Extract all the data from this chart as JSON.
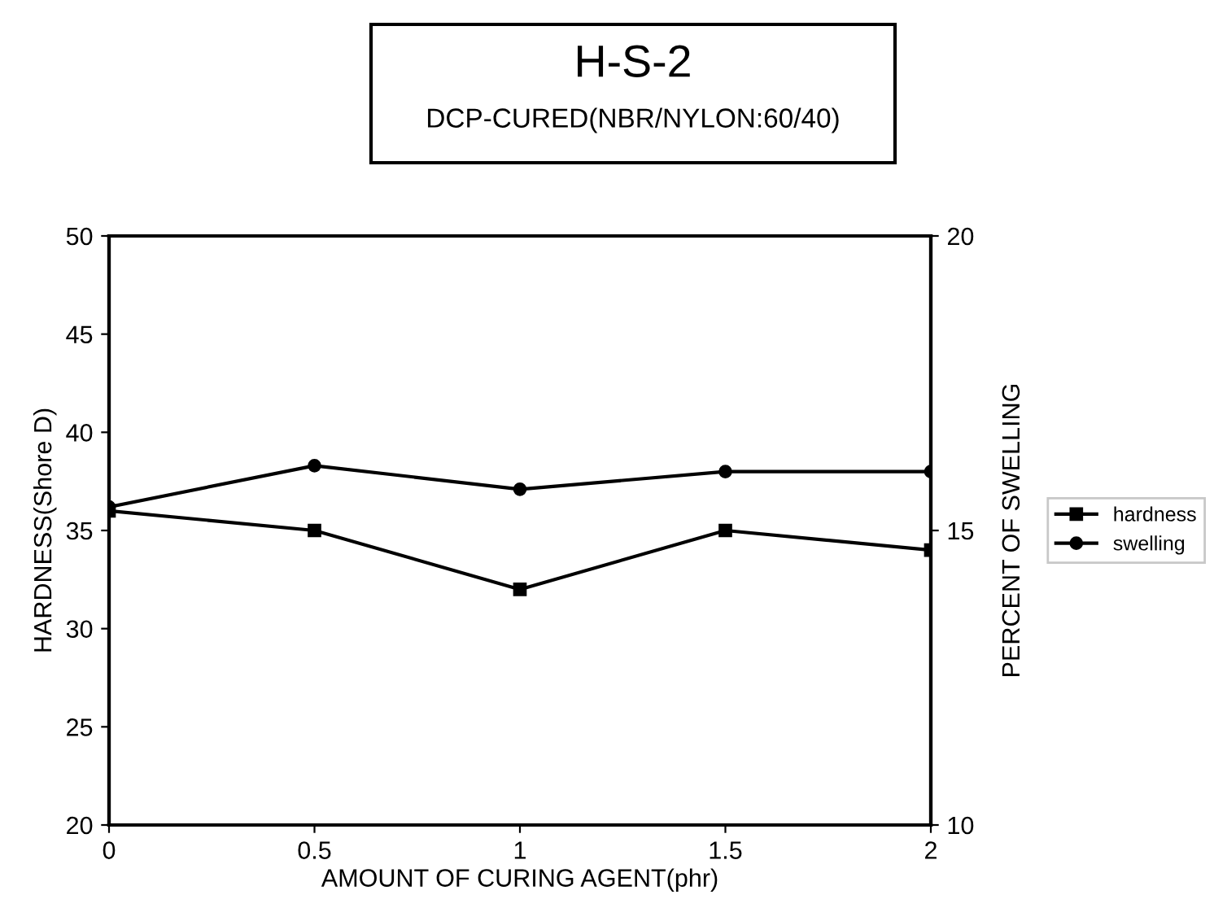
{
  "chart_data": {
    "type": "line",
    "title": "H-S-2",
    "subtitle": "DCP-CURED(NBR/NYLON:60/40)",
    "xlabel": "AMOUNT OF CURING AGENT(phr)",
    "ylabel": "HARDNESS(Shore D)",
    "y2label": "PERCENT OF SWELLING",
    "x": [
      0,
      0.5,
      1,
      1.5,
      2
    ],
    "series": [
      {
        "name": "hardness",
        "color": "#000000",
        "marker": "square",
        "values": [
          36.0,
          35.0,
          32.0,
          35.0,
          34.0
        ]
      },
      {
        "name": "swelling",
        "color": "#000000",
        "marker": "circle",
        "axis": "y2",
        "values": [
          15.4,
          16.1,
          15.7,
          16.0,
          16.0
        ]
      }
    ],
    "xlim": [
      0,
      2
    ],
    "xticks": [
      0,
      0.5,
      1,
      1.5,
      2
    ],
    "ylim": [
      20,
      50
    ],
    "yticks": [
      20,
      25,
      30,
      35,
      40,
      45,
      50
    ],
    "y2lim": [
      10,
      20
    ],
    "y2ticks": [
      10,
      15,
      20
    ],
    "grid": false,
    "legend": "right",
    "line_style": "solid"
  }
}
